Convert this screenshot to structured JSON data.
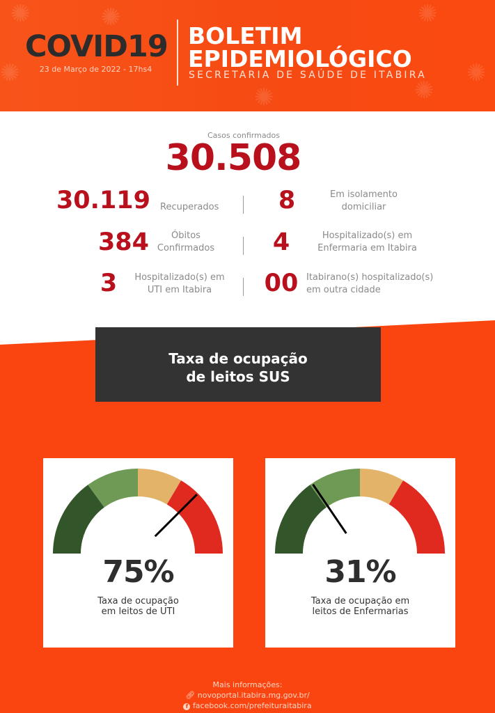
{
  "header": {
    "covid": "COVID19",
    "date": "23 de Março de 2022 - 17hs4",
    "title_line1": "BOLETIM",
    "title_line2": "EPIDEMIOLÓGICO",
    "subtitle": "SECRETARIA DE SAÚDE DE ITABIRA"
  },
  "confirmed": {
    "label": "Casos confirmados",
    "value": "30.508"
  },
  "stats": [
    {
      "value": "30.119",
      "label1": "Recuperados",
      "label2": ""
    },
    {
      "value": "8",
      "label1": "Em isolamento",
      "label2": "domiciliar"
    },
    {
      "value": "384",
      "label1": "Óbitos",
      "label2": "Confirmados"
    },
    {
      "value": "4",
      "label1": "Hospitalizado(s) em",
      "label2": "Enfermaria em Itabira"
    },
    {
      "value": "3",
      "label1": "Hospitalizado(s) em",
      "label2": "UTI em Itabira"
    },
    {
      "value": "00",
      "label1": "Itabirano(s) hospitalizado(s)",
      "label2": "em outra cidade"
    }
  ],
  "section": {
    "line1": "Taxa de ocupação",
    "line2": "de leitos SUS"
  },
  "gauges": [
    {
      "value": "75%",
      "fraction": 0.75,
      "caption1": "Taxa de ocupação",
      "caption2": "em leitos de UTI"
    },
    {
      "value": "31%",
      "fraction": 0.31,
      "caption1": "Taxa de ocupação em",
      "caption2": "leitos de Enfermarias"
    }
  ],
  "gauge_colors": [
    "#33552a",
    "#6e9a55",
    "#e4b36a",
    "#e0291f"
  ],
  "footer": {
    "more": "Mais informações:",
    "site": "novoportal.itabira.mg.gov.br/",
    "facebook": "facebook.com/prefeituraitabira",
    "link_icon": "link-icon",
    "facebook_icon": "facebook-icon"
  }
}
